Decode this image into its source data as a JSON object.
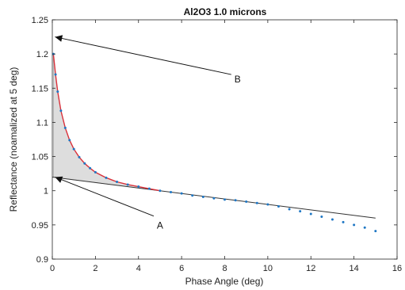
{
  "chart_data": {
    "type": "scatter",
    "title": "Al2O3 1.0 microns",
    "xlabel": "Phase Angle (deg)",
    "ylabel": "Reflectance (noamalized at 5 deg)",
    "xlim": [
      0,
      16
    ],
    "ylim": [
      0.9,
      1.25
    ],
    "xticks": [
      0,
      2,
      4,
      6,
      8,
      10,
      12,
      14,
      16
    ],
    "yticks": [
      0.9,
      0.95,
      1,
      1.05,
      1.1,
      1.15,
      1.2,
      1.25
    ],
    "xtick_labels": [
      "0",
      "2",
      "4",
      "6",
      "8",
      "10",
      "12",
      "14",
      "16"
    ],
    "ytick_labels": [
      "0.9",
      "0.95",
      "1",
      "1.05",
      "1.1",
      "1.15",
      "1.2",
      "1.25"
    ],
    "grid": false,
    "series": [
      {
        "role": "measured",
        "style": "dotted",
        "color": "#1f77c4",
        "x": [
          0.05,
          0.15,
          0.25,
          0.4,
          0.6,
          0.8,
          1.0,
          1.25,
          1.5,
          1.75,
          2.0,
          2.5,
          3.0,
          3.5,
          4.0,
          4.5,
          5.0,
          5.5,
          6.0,
          6.5,
          7.0,
          7.5,
          8.0,
          8.5,
          9.0,
          9.5,
          10.0,
          10.5,
          11.0,
          11.5,
          12.0,
          12.5,
          13.0,
          13.5,
          14.0,
          14.5,
          15.0
        ],
        "y": [
          1.2,
          1.17,
          1.145,
          1.117,
          1.092,
          1.074,
          1.061,
          1.049,
          1.04,
          1.033,
          1.027,
          1.019,
          1.013,
          1.009,
          1.006,
          1.003,
          1.0,
          0.998,
          0.996,
          0.993,
          0.991,
          0.989,
          0.987,
          0.986,
          0.984,
          0.982,
          0.98,
          0.977,
          0.973,
          0.97,
          0.966,
          0.962,
          0.958,
          0.954,
          0.95,
          0.946,
          0.941
        ]
      },
      {
        "role": "fit",
        "style": "line",
        "color": "#d9303a",
        "x": [
          0.05,
          0.15,
          0.25,
          0.4,
          0.6,
          0.8,
          1.0,
          1.25,
          1.5,
          1.75,
          2.0,
          2.5,
          3.0,
          3.5,
          4.0,
          4.5,
          5.0
        ],
        "y": [
          1.2,
          1.17,
          1.145,
          1.117,
          1.092,
          1.074,
          1.061,
          1.049,
          1.04,
          1.033,
          1.027,
          1.019,
          1.013,
          1.009,
          1.006,
          1.003,
          1.0
        ]
      },
      {
        "role": "linear-background",
        "style": "line",
        "color": "#333333",
        "x": [
          0,
          15
        ],
        "y": [
          1.02,
          0.96
        ]
      }
    ],
    "annotations": [
      {
        "label": "A",
        "text_x": 5.0,
        "text_y": 0.949,
        "arrow_to_x": 0.05,
        "arrow_to_y": 1.02
      },
      {
        "label": "B",
        "text_x": 8.6,
        "text_y": 1.163,
        "arrow_to_x": 0.05,
        "arrow_to_y": 1.225
      }
    ],
    "shaded_region": {
      "between": [
        "measured",
        "linear-background"
      ],
      "x_range": [
        0,
        5
      ],
      "color": "#dddddd"
    }
  }
}
